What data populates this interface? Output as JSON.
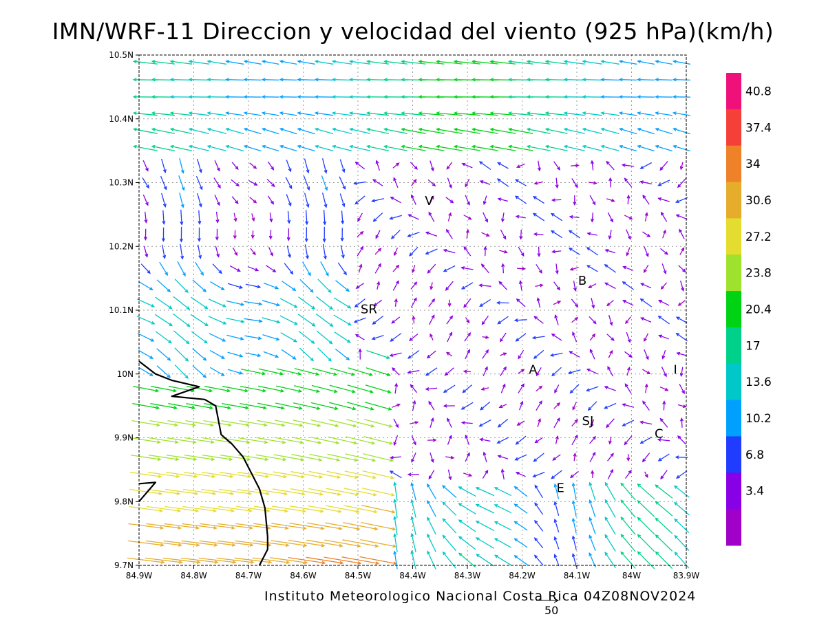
{
  "title": "IMN/WRF-11 Direccion y velocidad del viento (925 hPa)(km/h)",
  "credit": "Instituto Meteorologico Nacional Costa Rica 04Z08NOV2024",
  "reference_vector": {
    "label": "50",
    "speed": 50
  },
  "axes": {
    "x_ticks": [
      "84.9W",
      "84.8W",
      "84.7W",
      "84.6W",
      "84.5W",
      "84.4W",
      "84.3W",
      "84.2W",
      "84.1W",
      "84W",
      "83.9W"
    ],
    "y_ticks": [
      "10.5N",
      "10.4N",
      "10.3N",
      "10.2N",
      "10.1N",
      "10N",
      "9.9N",
      "9.8N",
      "9.7N"
    ],
    "lon_range": [
      -84.9,
      -83.9
    ],
    "lat_range": [
      9.7,
      10.5
    ],
    "grid": true
  },
  "colorbar": {
    "labels": [
      "40.8",
      "37.4",
      "34",
      "30.6",
      "27.2",
      "23.8",
      "20.4",
      "17",
      "13.6",
      "10.2",
      "6.8",
      "3.4"
    ],
    "colors": [
      "#f0107a",
      "#f5403a",
      "#ef8128",
      "#e6ad2c",
      "#e4dc2e",
      "#9fe22e",
      "#00d214",
      "#00d18a",
      "#00c8c8",
      "#00a0ff",
      "#1f3cff",
      "#8800e6",
      "#a000c8"
    ]
  },
  "places": [
    {
      "label": "V",
      "lon": -84.37,
      "lat": 10.265
    },
    {
      "label": "B",
      "lon": -84.09,
      "lat": 10.14
    },
    {
      "label": "SR",
      "lon": -84.48,
      "lat": 10.095
    },
    {
      "label": "A",
      "lon": -84.18,
      "lat": 10.0
    },
    {
      "label": "I",
      "lon": -83.92,
      "lat": 10.0
    },
    {
      "label": "SJ",
      "lon": -84.08,
      "lat": 9.92
    },
    {
      "label": "C",
      "lon": -83.95,
      "lat": 9.9
    },
    {
      "label": "E",
      "lon": -84.13,
      "lat": 9.815
    }
  ],
  "coastline": [
    {
      "points": [
        [
          -84.9,
          10.02
        ],
        [
          -84.87,
          10.0
        ],
        [
          -84.84,
          9.99
        ],
        [
          -84.79,
          9.98
        ],
        [
          -84.84,
          9.965
        ],
        [
          -84.78,
          9.96
        ],
        [
          -84.76,
          9.95
        ],
        [
          -84.75,
          9.905
        ],
        [
          -84.73,
          9.89
        ],
        [
          -84.71,
          9.87
        ],
        [
          -84.68,
          9.82
        ],
        [
          -84.67,
          9.79
        ],
        [
          -84.665,
          9.745
        ],
        [
          -84.665,
          9.725
        ],
        [
          -84.68,
          9.7
        ]
      ]
    },
    {
      "points": [
        [
          -84.9,
          9.8
        ],
        [
          -84.87,
          9.83
        ],
        [
          -84.9,
          9.828
        ]
      ]
    }
  ]
}
